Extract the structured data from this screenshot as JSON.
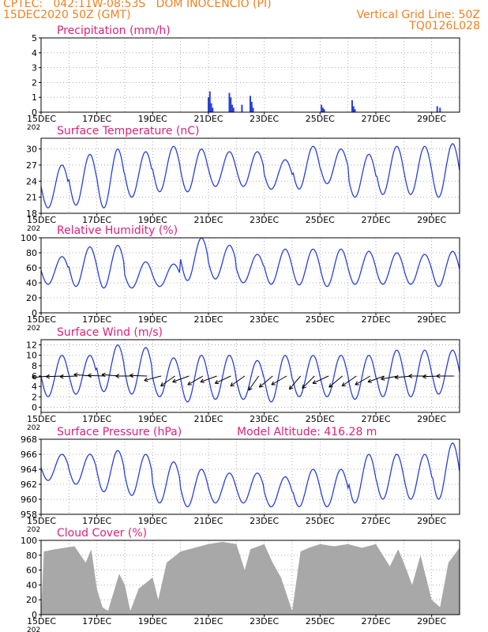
{
  "header": {
    "line1": "CPTEC:   042:11W-08:53S   DOM INOCENCIO (PI)",
    "line2": "15DEC2020 50Z (GMT)",
    "grid_note": "Vertical Grid Line: 50Z",
    "code": "TQ0126L028"
  },
  "colors": {
    "header": "#f08020",
    "title": "#e0207a",
    "series": "#2a40d8",
    "cloud": "#a8a8a8",
    "arrow": "#000000"
  },
  "x_axis": {
    "ticks": [
      "15DEC",
      "17DEC",
      "19DEC",
      "21DEC",
      "23DEC",
      "25DEC",
      "27DEC",
      "29DEC"
    ],
    "tick_days": [
      0,
      2,
      4,
      6,
      8,
      10,
      12,
      14
    ],
    "range_days": [
      0,
      15
    ],
    "year_stub": "202"
  },
  "chart_data": [
    {
      "type": "bar",
      "title": "Precipitation (mm/h)",
      "ylim": [
        0,
        5
      ],
      "yticks": [
        0,
        1,
        2,
        3,
        4,
        5
      ],
      "bars": [
        [
          6.0,
          1.0
        ],
        [
          6.05,
          1.4
        ],
        [
          6.1,
          0.6
        ],
        [
          6.15,
          0.3
        ],
        [
          6.75,
          1.3
        ],
        [
          6.8,
          1.0
        ],
        [
          6.85,
          0.5
        ],
        [
          6.9,
          0.3
        ],
        [
          7.2,
          0.5
        ],
        [
          7.5,
          1.1
        ],
        [
          7.55,
          0.7
        ],
        [
          7.6,
          0.3
        ],
        [
          10.05,
          0.5
        ],
        [
          10.1,
          0.3
        ],
        [
          10.15,
          0.2
        ],
        [
          11.15,
          0.8
        ],
        [
          11.2,
          0.4
        ],
        [
          11.25,
          0.2
        ],
        [
          14.2,
          0.4
        ],
        [
          14.3,
          0.3
        ]
      ]
    },
    {
      "type": "line",
      "title": "Surface Temperature (nC)",
      "ylim": [
        18,
        32
      ],
      "yticks": [
        18,
        21,
        24,
        27,
        30
      ],
      "daily_max": [
        27,
        29,
        30,
        29.5,
        30.5,
        30,
        29.5,
        29.5,
        28,
        30.5,
        30,
        29,
        30.5,
        30.5,
        31,
        31
      ],
      "daily_min": [
        19,
        19.5,
        19,
        21,
        22,
        22,
        23,
        23,
        22.5,
        22.5,
        23.5,
        21,
        21.5,
        21.5,
        21,
        21
      ]
    },
    {
      "type": "line",
      "title": "Relative Humidity (%)",
      "ylim": [
        0,
        100
      ],
      "yticks": [
        0,
        20,
        40,
        60,
        80,
        100
      ],
      "daily_max": [
        75,
        88,
        90,
        68,
        65,
        100,
        90,
        78,
        85,
        85,
        85,
        82,
        80,
        78,
        82,
        72
      ],
      "daily_min": [
        38,
        35,
        33,
        33,
        35,
        43,
        45,
        40,
        38,
        37,
        35,
        38,
        38,
        38,
        35,
        30
      ]
    },
    {
      "type": "line",
      "title": "Surface Wind (m/s)",
      "ylim": [
        -1,
        13
      ],
      "yticks": [
        0,
        2,
        4,
        6,
        8,
        10,
        12
      ],
      "daily_max": [
        10,
        10,
        12,
        11.5,
        9.5,
        10,
        10,
        9,
        10,
        10,
        10,
        10,
        11,
        11,
        11,
        11
      ],
      "daily_min": [
        2,
        2.5,
        3,
        2.5,
        2,
        1,
        1.5,
        1.5,
        1,
        2,
        2,
        1.5,
        2,
        2,
        2.5,
        2.5
      ]
    },
    {
      "type": "line",
      "title": "Surface Pressure (hPa)",
      "annotation": "Model Altitude: 416.28 m",
      "ylim": [
        958,
        968
      ],
      "yticks": [
        958,
        960,
        962,
        964,
        966,
        968
      ],
      "daily_max": [
        966,
        966,
        966.5,
        966,
        965,
        964,
        963.5,
        963.5,
        963,
        964,
        964,
        966,
        966,
        966,
        967.5,
        965
      ],
      "daily_min": [
        962.5,
        962,
        961,
        960.5,
        959.5,
        959,
        959.5,
        959.5,
        959,
        959,
        959,
        959.5,
        960,
        960,
        960,
        961
      ]
    },
    {
      "type": "area",
      "title": "Cloud Cover (%)",
      "ylim": [
        0,
        100
      ],
      "yticks": [
        0,
        20,
        40,
        60,
        80,
        100
      ],
      "points": [
        [
          0,
          0
        ],
        [
          0.1,
          85
        ],
        [
          0.5,
          88
        ],
        [
          1.2,
          92
        ],
        [
          1.6,
          70
        ],
        [
          1.8,
          88
        ],
        [
          2.0,
          35
        ],
        [
          2.2,
          10
        ],
        [
          2.4,
          5
        ],
        [
          2.6,
          30
        ],
        [
          2.8,
          55
        ],
        [
          3.0,
          40
        ],
        [
          3.2,
          5
        ],
        [
          3.5,
          35
        ],
        [
          4.0,
          50
        ],
        [
          4.2,
          20
        ],
        [
          4.5,
          70
        ],
        [
          5.0,
          85
        ],
        [
          5.5,
          90
        ],
        [
          6.0,
          95
        ],
        [
          6.5,
          98
        ],
        [
          7.0,
          95
        ],
        [
          7.3,
          60
        ],
        [
          7.5,
          88
        ],
        [
          8.0,
          95
        ],
        [
          8.3,
          70
        ],
        [
          8.6,
          50
        ],
        [
          9.0,
          5
        ],
        [
          9.3,
          85
        ],
        [
          9.6,
          90
        ],
        [
          10.0,
          95
        ],
        [
          10.5,
          92
        ],
        [
          11.0,
          95
        ],
        [
          11.5,
          90
        ],
        [
          12.0,
          95
        ],
        [
          12.5,
          65
        ],
        [
          12.8,
          88
        ],
        [
          13.0,
          70
        ],
        [
          13.3,
          40
        ],
        [
          13.6,
          80
        ],
        [
          14.0,
          20
        ],
        [
          14.3,
          10
        ],
        [
          14.6,
          70
        ],
        [
          15.0,
          90
        ]
      ]
    }
  ],
  "wind_vectors": {
    "days": [
      0.3,
      0.8,
      1.3,
      1.8,
      2.3,
      2.8,
      3.3,
      3.8,
      4.3,
      4.8,
      5.3,
      5.8,
      6.3,
      6.8,
      7.3,
      7.8,
      8.3,
      8.8,
      9.3,
      9.8,
      10.3,
      10.8,
      11.3,
      11.8,
      12.3,
      12.8,
      13.3,
      13.8,
      14.3,
      14.8
    ],
    "speed": [
      6,
      6,
      6,
      6,
      6,
      6,
      6,
      6,
      6,
      6,
      6,
      6,
      6,
      6,
      6,
      6,
      6,
      6,
      6,
      6,
      6,
      6,
      6,
      6,
      6,
      6,
      6,
      6,
      6,
      6
    ],
    "angle_deg": [
      185,
      182,
      182,
      175,
      178,
      175,
      180,
      178,
      195,
      215,
      200,
      210,
      200,
      205,
      215,
      235,
      220,
      210,
      230,
      225,
      205,
      220,
      215,
      210,
      200,
      190,
      185,
      180,
      182,
      180
    ]
  }
}
